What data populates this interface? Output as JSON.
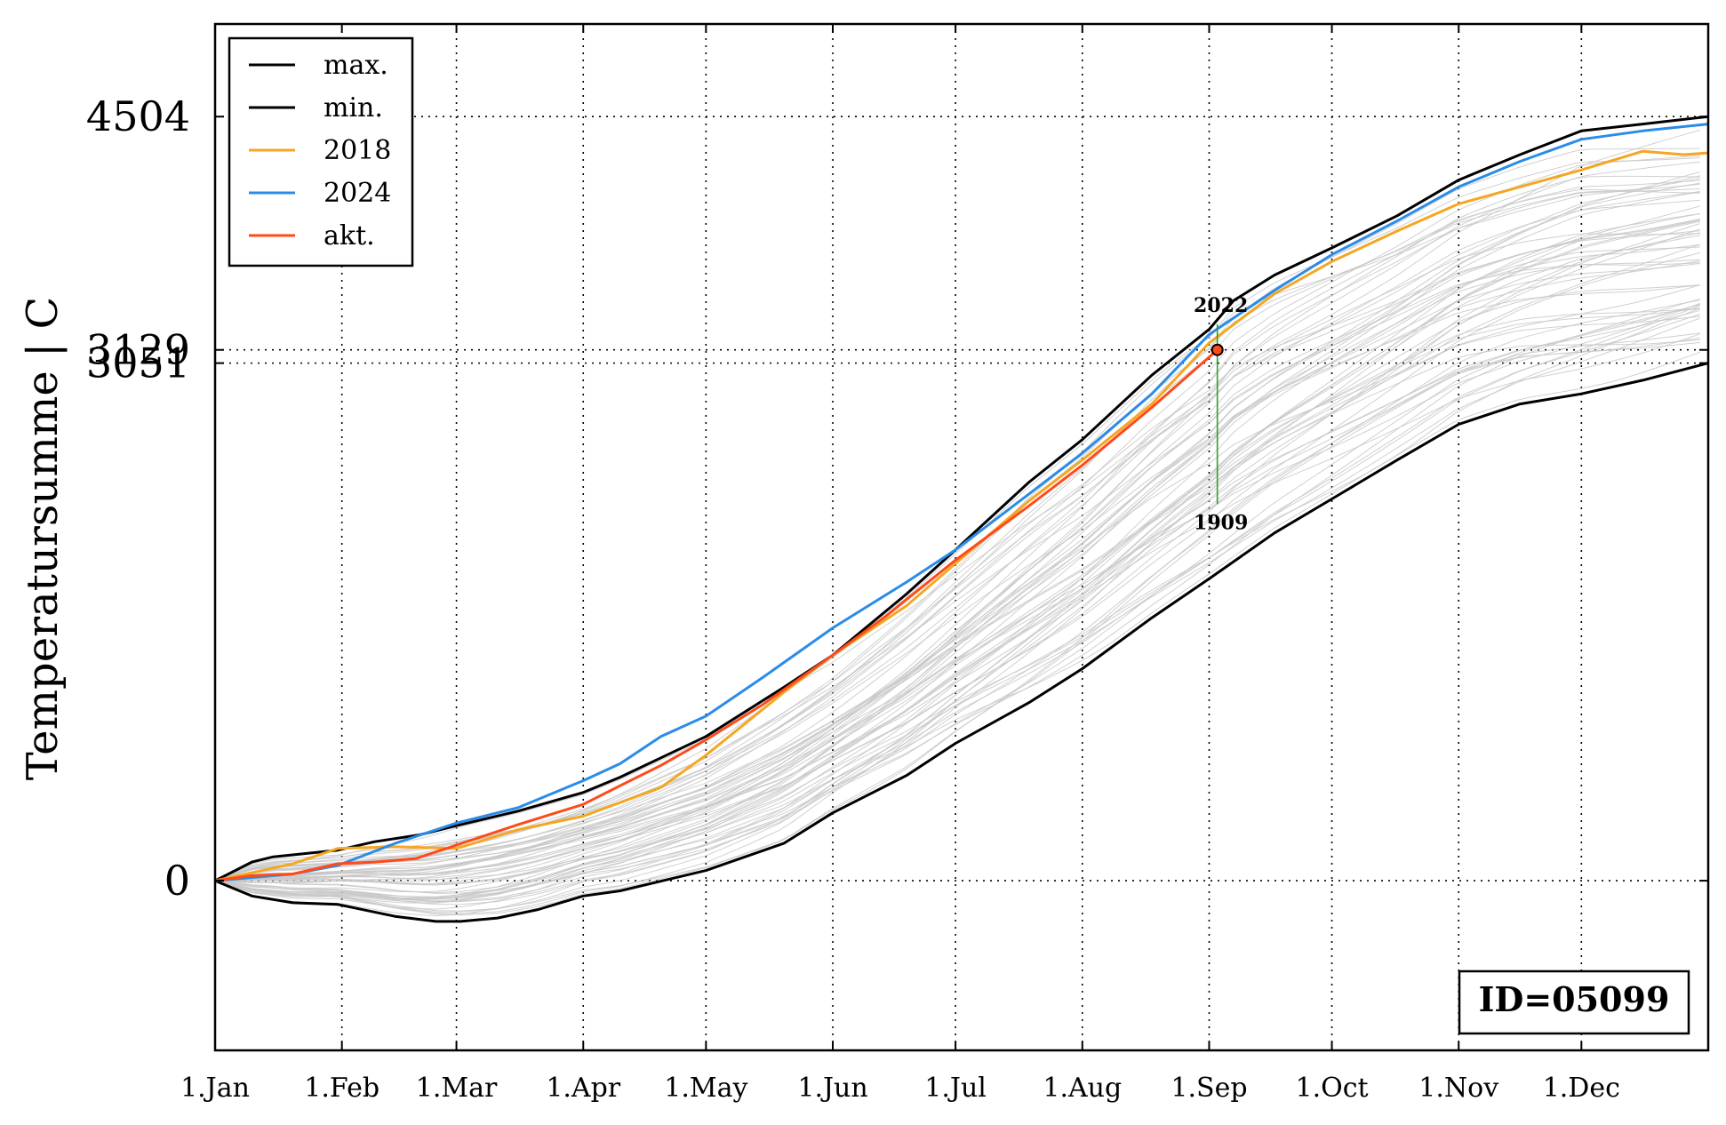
{
  "chart_data": {
    "type": "line",
    "ylabel": "Temperatursumme | C",
    "x_tick_labels": [
      "1.Jan",
      "1.Feb",
      "1.Mar",
      "1.Apr",
      "1.May",
      "1.Jun",
      "1.Jul",
      "1.Aug",
      "1.Sep",
      "1.Oct",
      "1.Nov",
      "1.Dec"
    ],
    "x_tick_days": [
      1,
      32,
      60,
      91,
      121,
      152,
      182,
      213,
      244,
      274,
      305,
      335
    ],
    "xlim": [
      1,
      366
    ],
    "y_ticks": [
      0,
      3051,
      3129,
      4504
    ],
    "y_tick_labels": [
      "0",
      "3051",
      "3129",
      "4504"
    ],
    "ylim": [
      -1000,
      5050
    ],
    "grid": true,
    "grid_style": "dotted",
    "legend_position": "top-left",
    "box_label": "ID=05099",
    "current_point": {
      "x": 246,
      "y": 3129
    },
    "range_annotation": {
      "x": 246,
      "top_label": "2022",
      "top_y": 3280,
      "bottom_label": "1909",
      "bottom_y": 2220
    },
    "colors": {
      "max": "#000000",
      "min": "#000000",
      "2018": "#f5a623",
      "2024": "#2b8ce8",
      "akt": "#ff4a1a",
      "background": "#c8c8c8",
      "marker_line": "#2ca02c"
    },
    "series": [
      {
        "name": "max.",
        "color": "#000000",
        "x": [
          1,
          10,
          15,
          31,
          40,
          51,
          61,
          75,
          91,
          100,
          121,
          140,
          152,
          170,
          182,
          200,
          213,
          230,
          244,
          250,
          260,
          274,
          290,
          305,
          320,
          335,
          350,
          366
        ],
        "y": [
          0,
          110,
          140,
          180,
          230,
          270,
          330,
          410,
          520,
          610,
          850,
          1140,
          1330,
          1690,
          1950,
          2350,
          2600,
          2980,
          3250,
          3420,
          3570,
          3730,
          3920,
          4130,
          4280,
          4420,
          4460,
          4504
        ]
      },
      {
        "name": "min.",
        "color": "#000000",
        "x": [
          1,
          10,
          20,
          31,
          45,
          55,
          61,
          70,
          80,
          91,
          100,
          121,
          140,
          152,
          170,
          182,
          200,
          213,
          230,
          244,
          260,
          274,
          290,
          305,
          320,
          335,
          350,
          366
        ],
        "y": [
          0,
          -90,
          -130,
          -140,
          -210,
          -240,
          -240,
          -220,
          -170,
          -90,
          -60,
          60,
          220,
          400,
          620,
          810,
          1050,
          1250,
          1550,
          1780,
          2050,
          2250,
          2480,
          2690,
          2810,
          2870,
          2950,
          3051
        ]
      },
      {
        "name": "2018",
        "color": "#f5a623",
        "x": [
          1,
          20,
          31,
          45,
          60,
          75,
          91,
          110,
          121,
          140,
          152,
          170,
          182,
          200,
          213,
          230,
          244,
          260,
          274,
          290,
          305,
          320,
          335,
          350,
          360,
          366
        ],
        "y": [
          0,
          100,
          190,
          200,
          190,
          300,
          380,
          550,
          740,
          1110,
          1330,
          1620,
          1870,
          2240,
          2480,
          2810,
          3170,
          3460,
          3650,
          3830,
          3990,
          4090,
          4190,
          4300,
          4280,
          4290
        ]
      },
      {
        "name": "2024",
        "color": "#2b8ce8",
        "x": [
          1,
          20,
          31,
          45,
          60,
          75,
          91,
          100,
          110,
          121,
          135,
          152,
          170,
          182,
          200,
          213,
          230,
          244,
          260,
          274,
          290,
          305,
          320,
          335,
          350,
          366
        ],
        "y": [
          0,
          40,
          90,
          220,
          340,
          430,
          590,
          690,
          850,
          970,
          1200,
          1490,
          1760,
          1950,
          2280,
          2520,
          2870,
          3220,
          3480,
          3690,
          3890,
          4090,
          4240,
          4370,
          4420,
          4460
        ]
      },
      {
        "name": "akt.",
        "color": "#ff4a1a",
        "x": [
          1,
          10,
          20,
          31,
          40,
          50,
          60,
          75,
          91,
          100,
          110,
          121,
          135,
          152,
          165,
          182,
          200,
          213,
          230,
          246
        ],
        "y": [
          0,
          30,
          40,
          100,
          110,
          130,
          210,
          330,
          450,
          560,
          680,
          830,
          1040,
          1330,
          1560,
          1890,
          2210,
          2450,
          2790,
          3129
        ]
      }
    ]
  }
}
